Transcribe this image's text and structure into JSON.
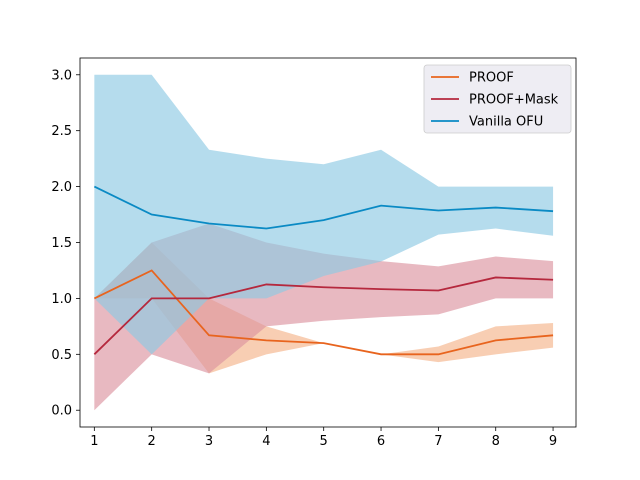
{
  "chart_data": {
    "type": "line",
    "x": [
      1,
      2,
      3,
      4,
      5,
      6,
      7,
      8,
      9
    ],
    "xlim": [
      0.75,
      9.4
    ],
    "ylim": [
      -0.15,
      3.15
    ],
    "xticks": [
      "1",
      "2",
      "3",
      "4",
      "5",
      "6",
      "7",
      "8",
      "9"
    ],
    "yticks": [
      "0.0",
      "0.5",
      "1.0",
      "1.5",
      "2.0",
      "2.5",
      "3.0"
    ],
    "title": "",
    "xlabel": "",
    "ylabel": "",
    "grid": false,
    "legend_position": "top-right",
    "series": [
      {
        "name": "PROOF",
        "color": "#e8641e",
        "band_color": "#f4b48a",
        "values": [
          1.0,
          1.25,
          0.67,
          0.625,
          0.6,
          0.5,
          0.5,
          0.625,
          0.67
        ],
        "lower": [
          1.0,
          1.0,
          0.33,
          0.5,
          0.6,
          0.5,
          0.43,
          0.5,
          0.56
        ],
        "upper": [
          1.0,
          1.5,
          1.0,
          0.75,
          0.6,
          0.5,
          0.57,
          0.75,
          0.78
        ]
      },
      {
        "name": "PROOF+Mask",
        "color": "#b5283d",
        "band_color": "#dc93a0",
        "values": [
          0.5,
          1.0,
          1.0,
          1.125,
          1.1,
          1.083,
          1.071,
          1.1875,
          1.167
        ],
        "lower": [
          0.0,
          0.5,
          0.33,
          0.75,
          0.8,
          0.833,
          0.857,
          1.0,
          1.0
        ],
        "upper": [
          1.0,
          1.5,
          1.67,
          1.5,
          1.4,
          1.333,
          1.286,
          1.375,
          1.333
        ]
      },
      {
        "name": "Vanilla OFU",
        "color": "#0a8ac4",
        "band_color": "#8ecae3",
        "values": [
          2.0,
          1.75,
          1.67,
          1.625,
          1.7,
          1.83,
          1.786,
          1.8125,
          1.78
        ],
        "lower": [
          1.0,
          0.5,
          1.0,
          1.0,
          1.2,
          1.33,
          1.57,
          1.625,
          1.56
        ],
        "upper": [
          3.0,
          3.0,
          2.33,
          2.25,
          2.2,
          2.33,
          2.0,
          2.0,
          2.0
        ]
      }
    ]
  }
}
